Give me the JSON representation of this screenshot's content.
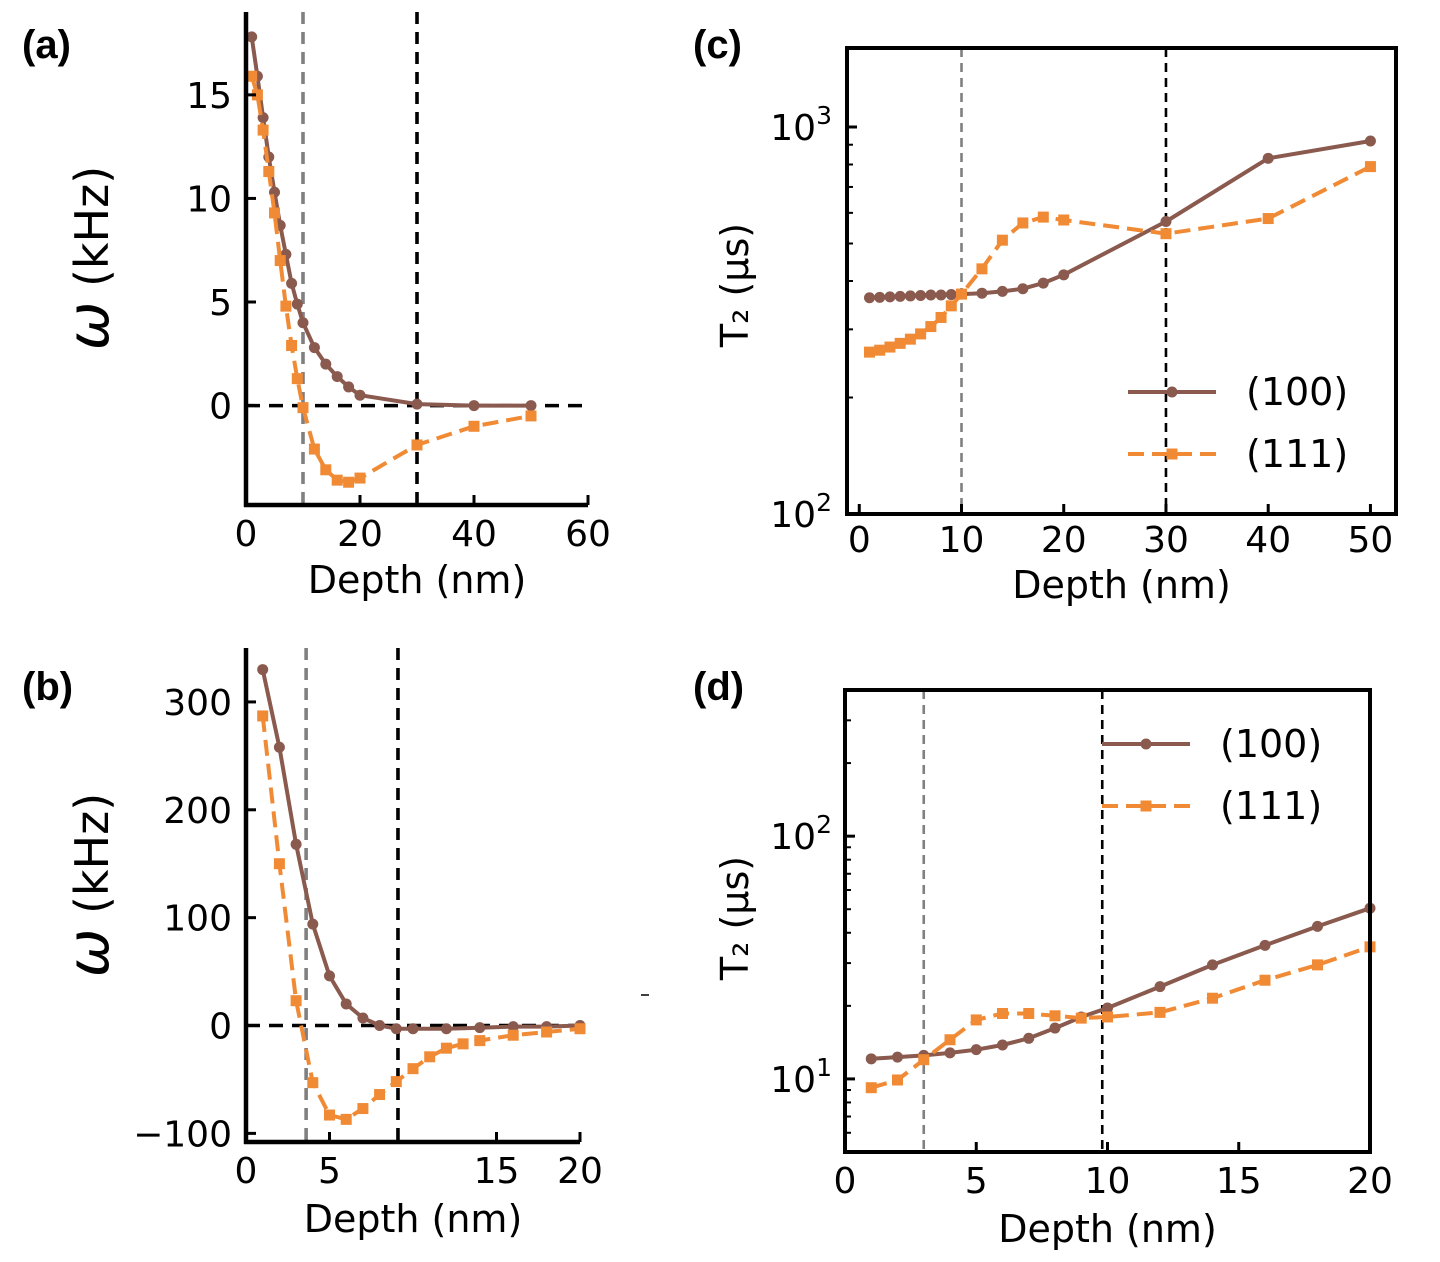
{
  "colors": {
    "s100": "#8a5a4e",
    "s111": "#f08a34",
    "gray_vline": "#808080",
    "black": "#000000"
  },
  "chart_data": [
    {
      "panel": "(a)",
      "type": "line",
      "xlabel": "Depth (nm)",
      "ylabel": "ω (kHz)",
      "xlim": [
        0,
        60
      ],
      "ylim": [
        -4.8,
        19.0
      ],
      "yscale": "linear",
      "xticks": [
        0,
        20,
        40,
        60
      ],
      "yticks": [
        0,
        5,
        10,
        15
      ],
      "vlines": [
        {
          "x": 10,
          "style": "gray"
        },
        {
          "x": 30,
          "style": "black"
        }
      ],
      "hlines": [
        {
          "y": 0
        }
      ],
      "series": [
        {
          "key": "s100",
          "x": [
            1,
            2,
            3,
            4,
            5,
            6,
            7,
            8,
            9,
            10,
            12,
            14,
            16,
            18,
            20,
            30,
            40,
            50
          ],
          "y": [
            17.8,
            15.9,
            13.9,
            12.0,
            10.3,
            8.7,
            7.3,
            5.9,
            4.9,
            4.0,
            2.8,
            2.0,
            1.4,
            0.9,
            0.5,
            0.07,
            0.0,
            0.0
          ]
        },
        {
          "key": "s111",
          "x": [
            1,
            2,
            3,
            4,
            5,
            6,
            7,
            8,
            9,
            10,
            12,
            14,
            16,
            18,
            20,
            30,
            40,
            50
          ],
          "y": [
            15.9,
            15.0,
            13.3,
            11.3,
            9.3,
            7.0,
            4.8,
            2.9,
            1.3,
            -0.1,
            -2.1,
            -3.1,
            -3.6,
            -3.7,
            -3.5,
            -1.9,
            -1.0,
            -0.5
          ]
        }
      ]
    },
    {
      "panel": "(b)",
      "type": "line",
      "xlabel": "Depth (nm)",
      "ylabel": "ω (kHz)",
      "xlim": [
        0,
        20
      ],
      "ylim": [
        -108,
        350
      ],
      "yscale": "linear",
      "xticks": [
        0,
        5,
        15,
        20
      ],
      "yticks": [
        -100,
        0,
        100,
        200,
        300
      ],
      "vlines": [
        {
          "x": 3.6,
          "style": "gray"
        },
        {
          "x": 9.1,
          "style": "black"
        }
      ],
      "hlines": [
        {
          "y": 0
        }
      ],
      "series": [
        {
          "key": "s100",
          "x": [
            1,
            2,
            3,
            4,
            5,
            6,
            7,
            8,
            9,
            10,
            12,
            14,
            16,
            18,
            20
          ],
          "y": [
            330,
            258,
            168,
            94,
            46,
            20,
            7,
            0,
            -3,
            -3,
            -3,
            -2,
            -1,
            -1,
            0
          ]
        },
        {
          "key": "s111",
          "x": [
            1,
            2,
            3,
            4,
            5,
            6,
            7,
            8,
            9,
            10,
            11,
            12,
            13,
            14,
            16,
            18,
            20
          ],
          "y": [
            287,
            150,
            23,
            -53,
            -83,
            -87,
            -77,
            -64,
            -52,
            -40,
            -29,
            -21,
            -17,
            -14,
            -9,
            -6,
            -3
          ]
        }
      ]
    },
    {
      "panel": "(c)",
      "type": "line",
      "xlabel": "Depth (nm)",
      "ylabel": "T₂ (μs)",
      "xlim": [
        -1.2,
        52.5
      ],
      "ylim": [
        100,
        1600
      ],
      "yscale": "log",
      "xticks": [
        0,
        10,
        20,
        30,
        40,
        50
      ],
      "yticks": [
        100,
        1000
      ],
      "ytick_labels": [
        {
          "base": "10",
          "exp": "2"
        },
        {
          "base": "10",
          "exp": "3"
        }
      ],
      "vlines": [
        {
          "x": 10,
          "style": "gray"
        },
        {
          "x": 30,
          "style": "black"
        }
      ],
      "hlines": [],
      "legend": {
        "position": "lower-right",
        "entries": [
          "(100)",
          "(111)"
        ]
      },
      "series": [
        {
          "key": "s100",
          "name": "(100)",
          "x": [
            1,
            2,
            3,
            4,
            5,
            6,
            7,
            8,
            9,
            10,
            12,
            14,
            16,
            18,
            20,
            30,
            40,
            50
          ],
          "y": [
            362,
            363,
            364,
            365,
            366,
            367,
            368,
            368,
            369,
            370,
            372,
            376,
            382,
            395,
            415,
            570,
            830,
            920
          ]
        },
        {
          "key": "s111",
          "name": "(111)",
          "x": [
            1,
            2,
            3,
            4,
            5,
            6,
            7,
            8,
            9,
            10,
            12,
            14,
            16,
            18,
            20,
            30,
            40,
            50
          ],
          "y": [
            262,
            265,
            270,
            276,
            283,
            292,
            305,
            322,
            345,
            370,
            430,
            510,
            565,
            585,
            575,
            530,
            580,
            790
          ]
        }
      ]
    },
    {
      "panel": "(d)",
      "type": "line",
      "xlabel": "Depth (nm)",
      "ylabel": "T₂ (μs)",
      "xlim": [
        0,
        20
      ],
      "ylim": [
        5,
        400
      ],
      "yscale": "log",
      "xticks": [
        0,
        5,
        10,
        15,
        20
      ],
      "yticks": [
        10,
        100
      ],
      "ytick_labels": [
        {
          "base": "10",
          "exp": "1"
        },
        {
          "base": "10",
          "exp": "2"
        }
      ],
      "vlines": [
        {
          "x": 3,
          "style": "gray"
        },
        {
          "x": 9.8,
          "style": "black"
        }
      ],
      "hlines": [],
      "legend": {
        "position": "upper-right",
        "entries": [
          "(100)",
          "(111)"
        ]
      },
      "series": [
        {
          "key": "s100",
          "name": "(100)",
          "x": [
            1,
            2,
            3,
            4,
            5,
            6,
            7,
            8,
            9,
            10,
            12,
            14,
            16,
            18,
            20
          ],
          "y": [
            12.1,
            12.3,
            12.5,
            12.8,
            13.2,
            13.8,
            14.7,
            16.2,
            18.0,
            19.6,
            24.0,
            29.5,
            35.5,
            42.5,
            50.5
          ]
        },
        {
          "key": "s111",
          "name": "(111)",
          "x": [
            1,
            2,
            3,
            4,
            5,
            6,
            7,
            8,
            9,
            10,
            12,
            14,
            16,
            18,
            20
          ],
          "y": [
            9.2,
            9.9,
            12.0,
            14.5,
            17.5,
            18.6,
            18.6,
            18.2,
            17.8,
            18.0,
            18.8,
            21.5,
            25.5,
            29.5,
            35.0
          ]
        }
      ]
    }
  ]
}
